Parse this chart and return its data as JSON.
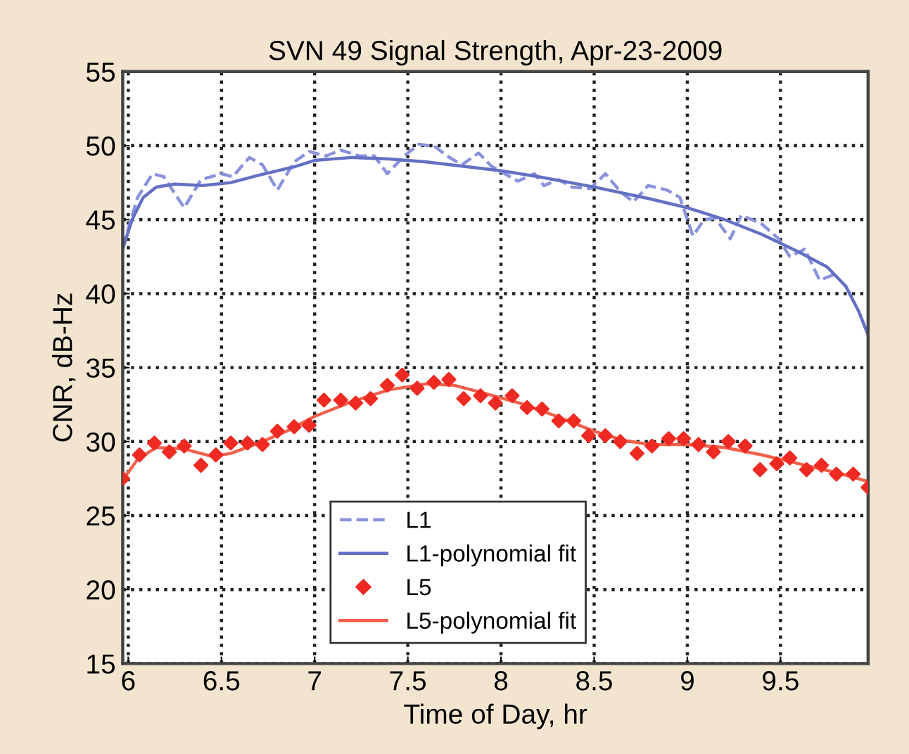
{
  "chart_data": {
    "type": "line",
    "title": "SVN 49 Signal Strength, Apr-23-2009",
    "xlabel": "Time of Day, hr",
    "ylabel": "CNR, dB-Hz",
    "xlim": [
      5.97,
      9.97
    ],
    "xticks": [
      6,
      6.5,
      7,
      7.5,
      8,
      8.5,
      9,
      9.5
    ],
    "ylim": [
      15,
      55
    ],
    "yticks": [
      15,
      20,
      25,
      30,
      35,
      40,
      45,
      50,
      55
    ],
    "grid": true,
    "legend": "bottom",
    "series": [
      {
        "name": "L1",
        "line_style": "dashed",
        "color": "#8a92dc",
        "x": [
          5.97,
          6.05,
          6.13,
          6.19,
          6.3,
          6.39,
          6.5,
          6.56,
          6.65,
          6.72,
          6.8,
          6.89,
          6.97,
          7.06,
          7.14,
          7.24,
          7.32,
          7.39,
          7.48,
          7.56,
          7.65,
          7.71,
          7.79,
          7.88,
          7.95,
          8.02,
          8.09,
          8.18,
          8.23,
          8.31,
          8.38,
          8.48,
          8.56,
          8.64,
          8.71,
          8.79,
          8.89,
          8.96,
          9.03,
          9.09,
          9.15,
          9.23,
          9.29,
          9.4,
          9.49,
          9.55,
          9.63,
          9.71,
          9.79
        ],
        "values": [
          43.1,
          46.5,
          48.1,
          47.9,
          45.8,
          47.7,
          48.1,
          47.9,
          49.2,
          48.7,
          47.0,
          48.9,
          49.6,
          49.3,
          49.7,
          49.3,
          49.3,
          48.1,
          49.3,
          50.1,
          49.9,
          49.3,
          48.7,
          49.5,
          48.6,
          48.1,
          47.6,
          48.1,
          47.3,
          47.7,
          47.2,
          47.1,
          48.1,
          46.9,
          46.2,
          47.3,
          47.0,
          46.5,
          43.9,
          45.0,
          45.1,
          43.7,
          45.3,
          44.7,
          43.7,
          42.5,
          43.0,
          40.9,
          41.3
        ]
      },
      {
        "name": "L1-polynomial fit",
        "line_style": "solid",
        "color": "#6470c4",
        "x": [
          5.97,
          6.02,
          6.08,
          6.15,
          6.25,
          6.4,
          6.55,
          6.7,
          6.9,
          7.0,
          7.2,
          7.4,
          7.6,
          7.8,
          8.0,
          8.2,
          8.5,
          8.8,
          9.0,
          9.2,
          9.4,
          9.6,
          9.75,
          9.85,
          9.92,
          9.97
        ],
        "values": [
          43.0,
          45.0,
          46.5,
          47.2,
          47.4,
          47.3,
          47.5,
          48.0,
          48.6,
          49.0,
          49.2,
          49.1,
          48.9,
          48.6,
          48.3,
          47.9,
          47.2,
          46.4,
          45.8,
          45.0,
          44.0,
          42.8,
          41.8,
          40.5,
          38.8,
          37.2
        ]
      },
      {
        "name": "L5",
        "type": "scatter",
        "marker": "diamond",
        "color": "#ee2a22",
        "x": [
          5.97,
          6.06,
          6.14,
          6.22,
          6.3,
          6.39,
          6.47,
          6.55,
          6.64,
          6.72,
          6.8,
          6.89,
          6.97,
          7.05,
          7.14,
          7.22,
          7.3,
          7.39,
          7.47,
          7.55,
          7.64,
          7.72,
          7.8,
          7.89,
          7.97,
          8.06,
          8.14,
          8.22,
          8.31,
          8.39,
          8.47,
          8.56,
          8.64,
          8.73,
          8.81,
          8.9,
          8.98,
          9.06,
          9.14,
          9.22,
          9.31,
          9.39,
          9.48,
          9.55,
          9.64,
          9.72,
          9.8,
          9.89,
          9.97
        ],
        "values": [
          27.5,
          29.1,
          29.9,
          29.3,
          29.7,
          28.4,
          29.1,
          29.9,
          29.9,
          29.8,
          30.7,
          31.0,
          31.1,
          32.8,
          32.8,
          32.6,
          32.9,
          33.8,
          34.5,
          33.6,
          34.0,
          34.2,
          32.9,
          33.1,
          32.6,
          33.1,
          32.3,
          32.2,
          31.4,
          31.4,
          30.4,
          30.4,
          30.0,
          29.2,
          29.7,
          30.2,
          30.2,
          29.8,
          29.3,
          30.0,
          29.7,
          28.1,
          28.5,
          28.9,
          28.1,
          28.4,
          27.8,
          27.8,
          26.9
        ]
      },
      {
        "name": "L5-polynomial fit",
        "line_style": "solid",
        "color": "#f2604c",
        "x": [
          5.97,
          6.05,
          6.15,
          6.3,
          6.45,
          6.55,
          6.7,
          6.85,
          7.0,
          7.2,
          7.4,
          7.6,
          7.75,
          7.9,
          8.1,
          8.3,
          8.5,
          8.65,
          8.8,
          9.0,
          9.2,
          9.4,
          9.6,
          9.8,
          9.97
        ],
        "values": [
          27.4,
          28.8,
          29.6,
          29.5,
          29.0,
          29.2,
          29.9,
          30.7,
          31.7,
          32.7,
          33.5,
          33.9,
          33.8,
          33.3,
          32.6,
          31.7,
          30.7,
          30.1,
          29.8,
          29.8,
          29.6,
          29.1,
          28.5,
          27.9,
          27.3
        ]
      }
    ]
  }
}
